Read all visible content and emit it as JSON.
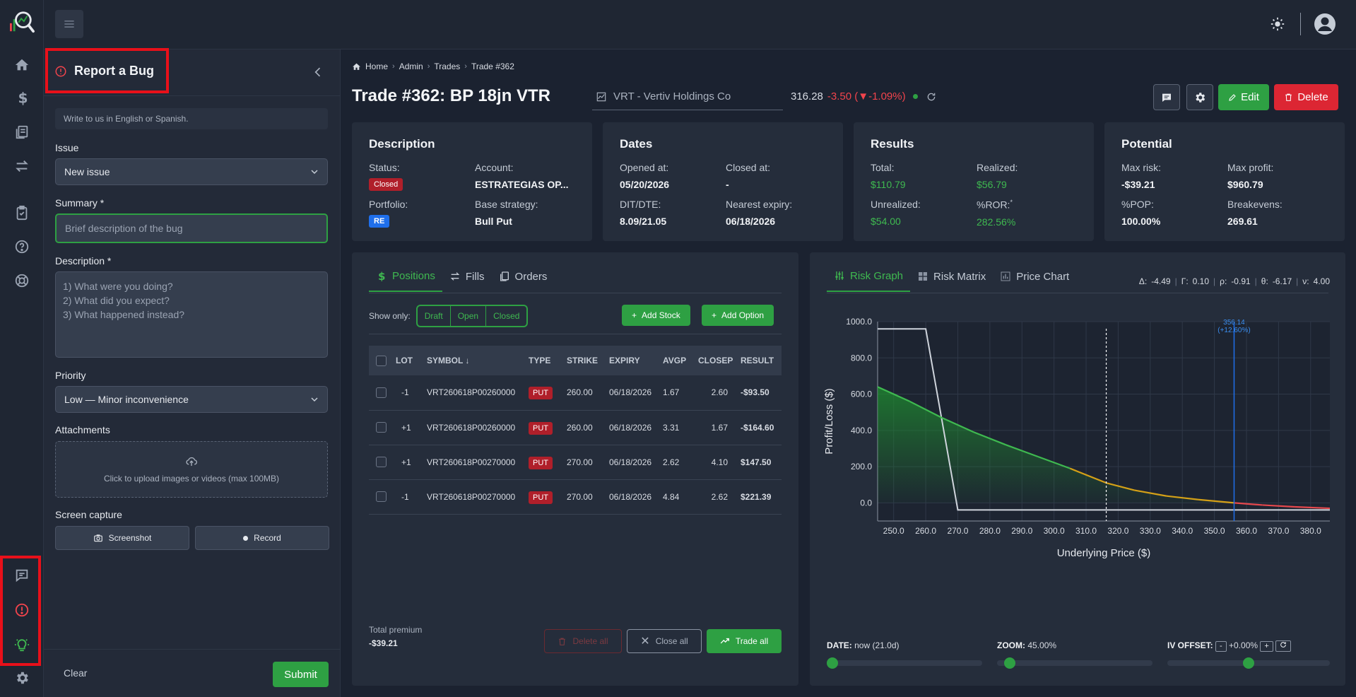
{
  "sidebar_rail": {
    "items": [
      "home-icon",
      "dollar-icon",
      "documents-icon",
      "transfer-icon",
      "clipboard-icon",
      "help-icon",
      "lifebuoy-icon"
    ],
    "bottom_items": [
      "feedback-icon",
      "bug-alert-icon",
      "idea-icon",
      "settings-icon"
    ]
  },
  "bug_panel": {
    "title": "Report a Bug",
    "note": "Write to us in English or Spanish.",
    "issue_label": "Issue",
    "issue_value": "New issue",
    "summary_label": "Summary *",
    "summary_placeholder": "Brief description of the bug",
    "description_label": "Description *",
    "description_placeholder": "1) What were you doing?\n2) What did you expect?\n3) What happened instead?",
    "priority_label": "Priority",
    "priority_value": "Low — Minor inconvenience",
    "attachments_label": "Attachments",
    "upload_text": "Click to upload images or videos (max 100MB)",
    "screen_capture_label": "Screen capture",
    "screenshot_label": "Screenshot",
    "record_label": "Record",
    "clear_label": "Clear",
    "submit_label": "Submit"
  },
  "breadcrumb": [
    "Home",
    "Admin",
    "Trades",
    "Trade #362"
  ],
  "trade": {
    "title": "Trade #362: BP 18jn VTR",
    "symbol": "VRT - Vertiv Holdings Co",
    "price": "316.28",
    "change": "-3.50 (▼-1.09%)",
    "edit_label": "Edit",
    "delete_label": "Delete"
  },
  "cards": {
    "description": {
      "title": "Description",
      "status_label": "Status:",
      "status_value": "Closed",
      "account_label": "Account:",
      "account_value": "ESTRATEGIAS OP...",
      "portfolio_label": "Portfolio:",
      "portfolio_value": "RE",
      "base_label": "Base strategy:",
      "base_value": "Bull Put"
    },
    "dates": {
      "title": "Dates",
      "opened_label": "Opened at:",
      "opened_value": "05/20/2026",
      "closed_label": "Closed at:",
      "closed_value": "-",
      "dit_label": "DIT/DTE:",
      "dit_value": "8.09/21.05",
      "expiry_label": "Nearest expiry:",
      "expiry_value": "06/18/2026"
    },
    "results": {
      "title": "Results",
      "total_label": "Total:",
      "total_value": "$110.79",
      "realized_label": "Realized:",
      "realized_value": "$56.79",
      "unrealized_label": "Unrealized:",
      "unrealized_value": "$54.00",
      "ror_label": "%ROR:",
      "ror_mark": "*",
      "ror_value": "282.56%"
    },
    "potential": {
      "title": "Potential",
      "maxrisk_label": "Max risk:",
      "maxrisk_value": "-$39.21",
      "maxprofit_label": "Max profit:",
      "maxprofit_value": "$960.79",
      "pop_label": "%POP:",
      "pop_value": "100.00%",
      "be_label": "Breakevens:",
      "be_value": "269.61"
    }
  },
  "positions_panel": {
    "tabs": [
      "Positions",
      "Fills",
      "Orders"
    ],
    "show_only_label": "Show only:",
    "filters": [
      "Draft",
      "Open",
      "Closed"
    ],
    "add_stock_label": "Add Stock",
    "add_option_label": "Add Option",
    "columns": [
      "LOT",
      "SYMBOL ↓",
      "TYPE",
      "STRIKE",
      "EXPIRY",
      "AVGP",
      "CLOSEP",
      "RESULT"
    ],
    "rows": [
      {
        "lot": "-1",
        "symbol": "VRT260618P00260000",
        "type": "PUT",
        "strike": "260.00",
        "expiry": "06/18/2026",
        "avgp": "1.67",
        "closep": "2.60",
        "result": "-$93.50"
      },
      {
        "lot": "+1",
        "symbol": "VRT260618P00260000",
        "type": "PUT",
        "strike": "260.00",
        "expiry": "06/18/2026",
        "avgp": "3.31",
        "closep": "1.67",
        "result": "-$164.60"
      },
      {
        "lot": "+1",
        "symbol": "VRT260618P00270000",
        "type": "PUT",
        "strike": "270.00",
        "expiry": "06/18/2026",
        "avgp": "2.62",
        "closep": "4.10",
        "result": "$147.50"
      },
      {
        "lot": "-1",
        "symbol": "VRT260618P00270000",
        "type": "PUT",
        "strike": "270.00",
        "expiry": "06/18/2026",
        "avgp": "4.84",
        "closep": "2.62",
        "result": "$221.39"
      }
    ],
    "total_premium_label": "Total premium",
    "total_premium_value": "-$39.21",
    "delete_all_label": "Delete all",
    "close_all_label": "Close all",
    "trade_all_label": "Trade all"
  },
  "risk_panel": {
    "tabs": [
      "Risk Graph",
      "Risk Matrix",
      "Price Chart"
    ],
    "greeks": [
      {
        "label": "Δ:",
        "value": "-4.49"
      },
      {
        "label": "Γ:",
        "value": "0.10"
      },
      {
        "label": "ρ:",
        "value": "-0.91"
      },
      {
        "label": "θ:",
        "value": "-6.17"
      },
      {
        "label": "ν:",
        "value": "4.00"
      }
    ],
    "date_label": "DATE:",
    "date_value": "now (21.0d)",
    "zoom_label": "ZOOM:",
    "zoom_value": "45.00%",
    "iv_label": "IV OFFSET:",
    "iv_minus": "-",
    "iv_value": "+0.00%",
    "iv_plus": "+",
    "sliders": {
      "date": 0.0,
      "zoom": 0.05,
      "iv": 0.5
    }
  },
  "chart_data": {
    "type": "line",
    "xlabel": "Underlying Price ($)",
    "ylabel": "Profit/Loss ($)",
    "xlim": [
      245,
      386
    ],
    "ylim": [
      -100,
      1000
    ],
    "xticks": [
      250,
      260,
      270,
      280,
      290,
      300,
      310,
      320,
      330,
      340,
      350,
      360,
      370,
      380
    ],
    "yticks": [
      0,
      200,
      400,
      600,
      800,
      1000
    ],
    "xtick_labels": [
      "250.0",
      "260.0",
      "270.0",
      "280.0",
      "290.0",
      "300.0",
      "310.0",
      "320.0",
      "330.0",
      "340.0",
      "350.0",
      "360.0",
      "370.0",
      "380.0"
    ],
    "ytick_labels": [
      "0.0",
      "200.0",
      "400.0",
      "600.0",
      "800.0",
      "1000.0"
    ],
    "grid": true,
    "series": [
      {
        "name": "",
        "color": "#cfd4dc",
        "x": [
          245,
          260,
          270,
          386
        ],
        "y": [
          960,
          960,
          -39,
          -39
        ]
      },
      {
        "name": "",
        "color": "#3fb950",
        "x": [
          245,
          255,
          265,
          275,
          285,
          295,
          305,
          316.28,
          325,
          335,
          345,
          356.14,
          365,
          375,
          386
        ],
        "y": [
          640,
          560,
          470,
          390,
          320,
          255,
          190,
          110,
          70,
          38,
          18,
          0,
          -12,
          -22,
          -30
        ]
      }
    ],
    "annotations": [
      {
        "type": "vline",
        "x": 316.28,
        "style": "dashed",
        "color": "#ffffff"
      },
      {
        "type": "vline",
        "x": 356.14,
        "color": "#1f6feb",
        "label": "356.14\n(+12.60%)"
      }
    ]
  },
  "colors": {
    "accent": "#2ea043",
    "danger": "#dc2633",
    "highlight": "#e8101a"
  }
}
